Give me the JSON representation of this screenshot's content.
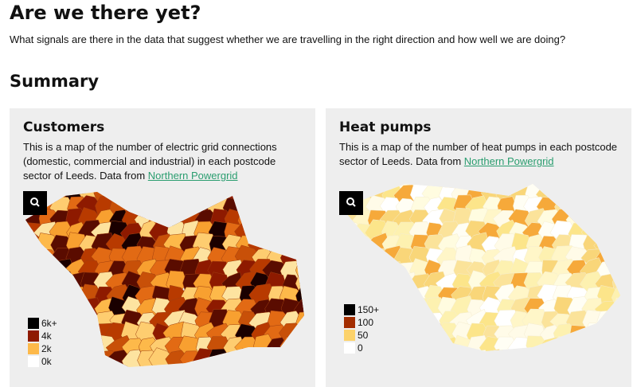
{
  "header": {
    "title": "Are we there yet?",
    "subtitle": "What signals are there in the data that suggest whether we are travelling in the right direction and how well we are doing?"
  },
  "section": {
    "title": "Summary"
  },
  "cards": [
    {
      "title": "Customers",
      "description": "This is a map of the number of electric grid connections (domestic, commercial and industrial) in each postcode sector of Leeds. Data from ",
      "link": "Northern Powergrid",
      "legend": [
        "6k+",
        "4k",
        "2k",
        "0k"
      ]
    },
    {
      "title": "Heat pumps",
      "description": "This is a map of the number of heat pumps in each postcode sector of Leeds. Data from ",
      "link": "Northern Powergrid",
      "legend": [
        "150+",
        "100",
        "50",
        "0"
      ]
    }
  ]
}
